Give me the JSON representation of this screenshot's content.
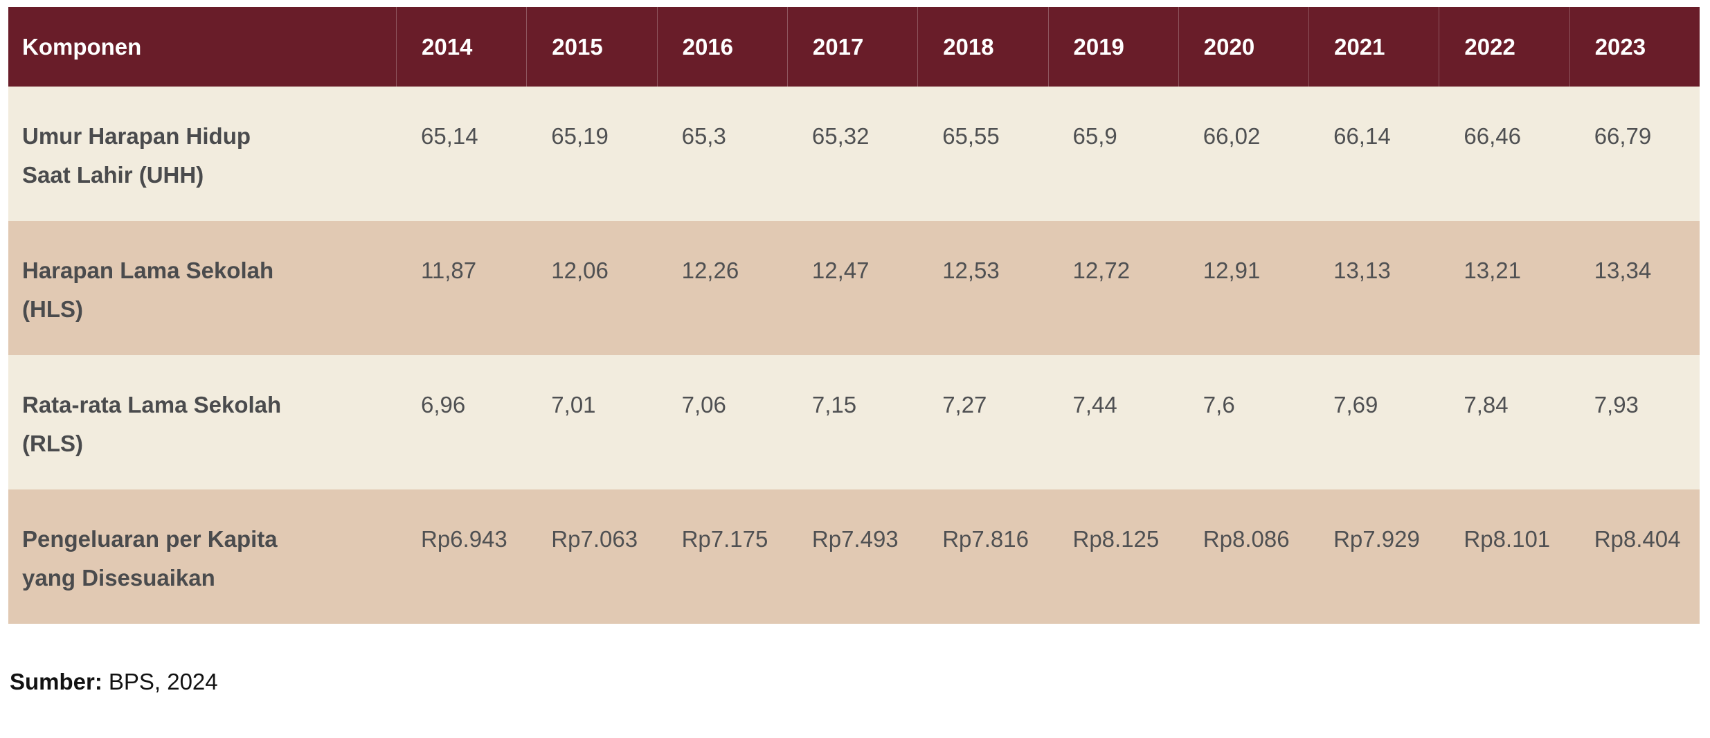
{
  "chart_data": {
    "type": "table",
    "columns": [
      "Komponen",
      "2014",
      "2015",
      "2016",
      "2017",
      "2018",
      "2019",
      "2020",
      "2021",
      "2022",
      "2023"
    ],
    "rows": [
      [
        "Umur Harapan Hidup Saat Lahir (UHH)",
        "65,14",
        "65,19",
        "65,3",
        "65,32",
        "65,55",
        "65,9",
        "66,02",
        "66,14",
        "66,46",
        "66,79"
      ],
      [
        "Harapan Lama Sekolah (HLS)",
        "11,87",
        "12,06",
        "12,26",
        "12,47",
        "12,53",
        "12,72",
        "12,91",
        "13,13",
        "13,21",
        "13,34"
      ],
      [
        "Rata-rata Lama Sekolah (RLS)",
        "6,96",
        "7,01",
        "7,06",
        "7,15",
        "7,27",
        "7,44",
        "7,6",
        "7,69",
        "7,84",
        "7,93"
      ],
      [
        "Pengeluaran per Kapita yang Disesuaikan",
        "Rp6.943",
        "Rp7.063",
        "Rp7.175",
        "Rp7.493",
        "Rp7.816",
        "Rp8.125",
        "Rp8.086",
        "Rp7.929",
        "Rp8.101",
        "Rp8.404"
      ]
    ],
    "source": "Sumber: BPS, 2024"
  },
  "table": {
    "header": {
      "komponen": "Komponen",
      "years": [
        "2014",
        "2015",
        "2016",
        "2017",
        "2018",
        "2019",
        "2020",
        "2021",
        "2022",
        "2023"
      ]
    },
    "rows": [
      {
        "label_line1": "Umur Harapan Hidup",
        "label_line2": "Saat Lahir (UHH)",
        "values": [
          "65,14",
          "65,19",
          "65,3",
          "65,32",
          "65,55",
          "65,9",
          "66,02",
          "66,14",
          "66,46",
          "66,79"
        ]
      },
      {
        "label_line1": "Harapan Lama Sekolah",
        "label_line2": "(HLS)",
        "values": [
          "11,87",
          "12,06",
          "12,26",
          "12,47",
          "12,53",
          "12,72",
          "12,91",
          "13,13",
          "13,21",
          "13,34"
        ]
      },
      {
        "label_line1": "Rata-rata Lama Sekolah",
        "label_line2": "(RLS)",
        "values": [
          "6,96",
          "7,01",
          "7,06",
          "7,15",
          "7,27",
          "7,44",
          "7,6",
          "7,69",
          "7,84",
          "7,93"
        ]
      },
      {
        "label_line1": "Pengeluaran per Kapita",
        "label_line2": "yang Disesuaikan",
        "values": [
          "Rp6.943",
          "Rp7.063",
          "Rp7.175",
          "Rp7.493",
          "Rp7.816",
          "Rp8.125",
          "Rp8.086",
          "Rp7.929",
          "Rp8.101",
          "Rp8.404"
        ]
      }
    ]
  },
  "footer": {
    "source_label": "Sumber:",
    "source_value": "BPS, 2024"
  },
  "colors": {
    "header_bg": "#691d29",
    "header_text": "#ffffff",
    "row_cream": "#f2ecde",
    "row_tan": "#e1c9b3",
    "body_text": "#4f5052"
  }
}
